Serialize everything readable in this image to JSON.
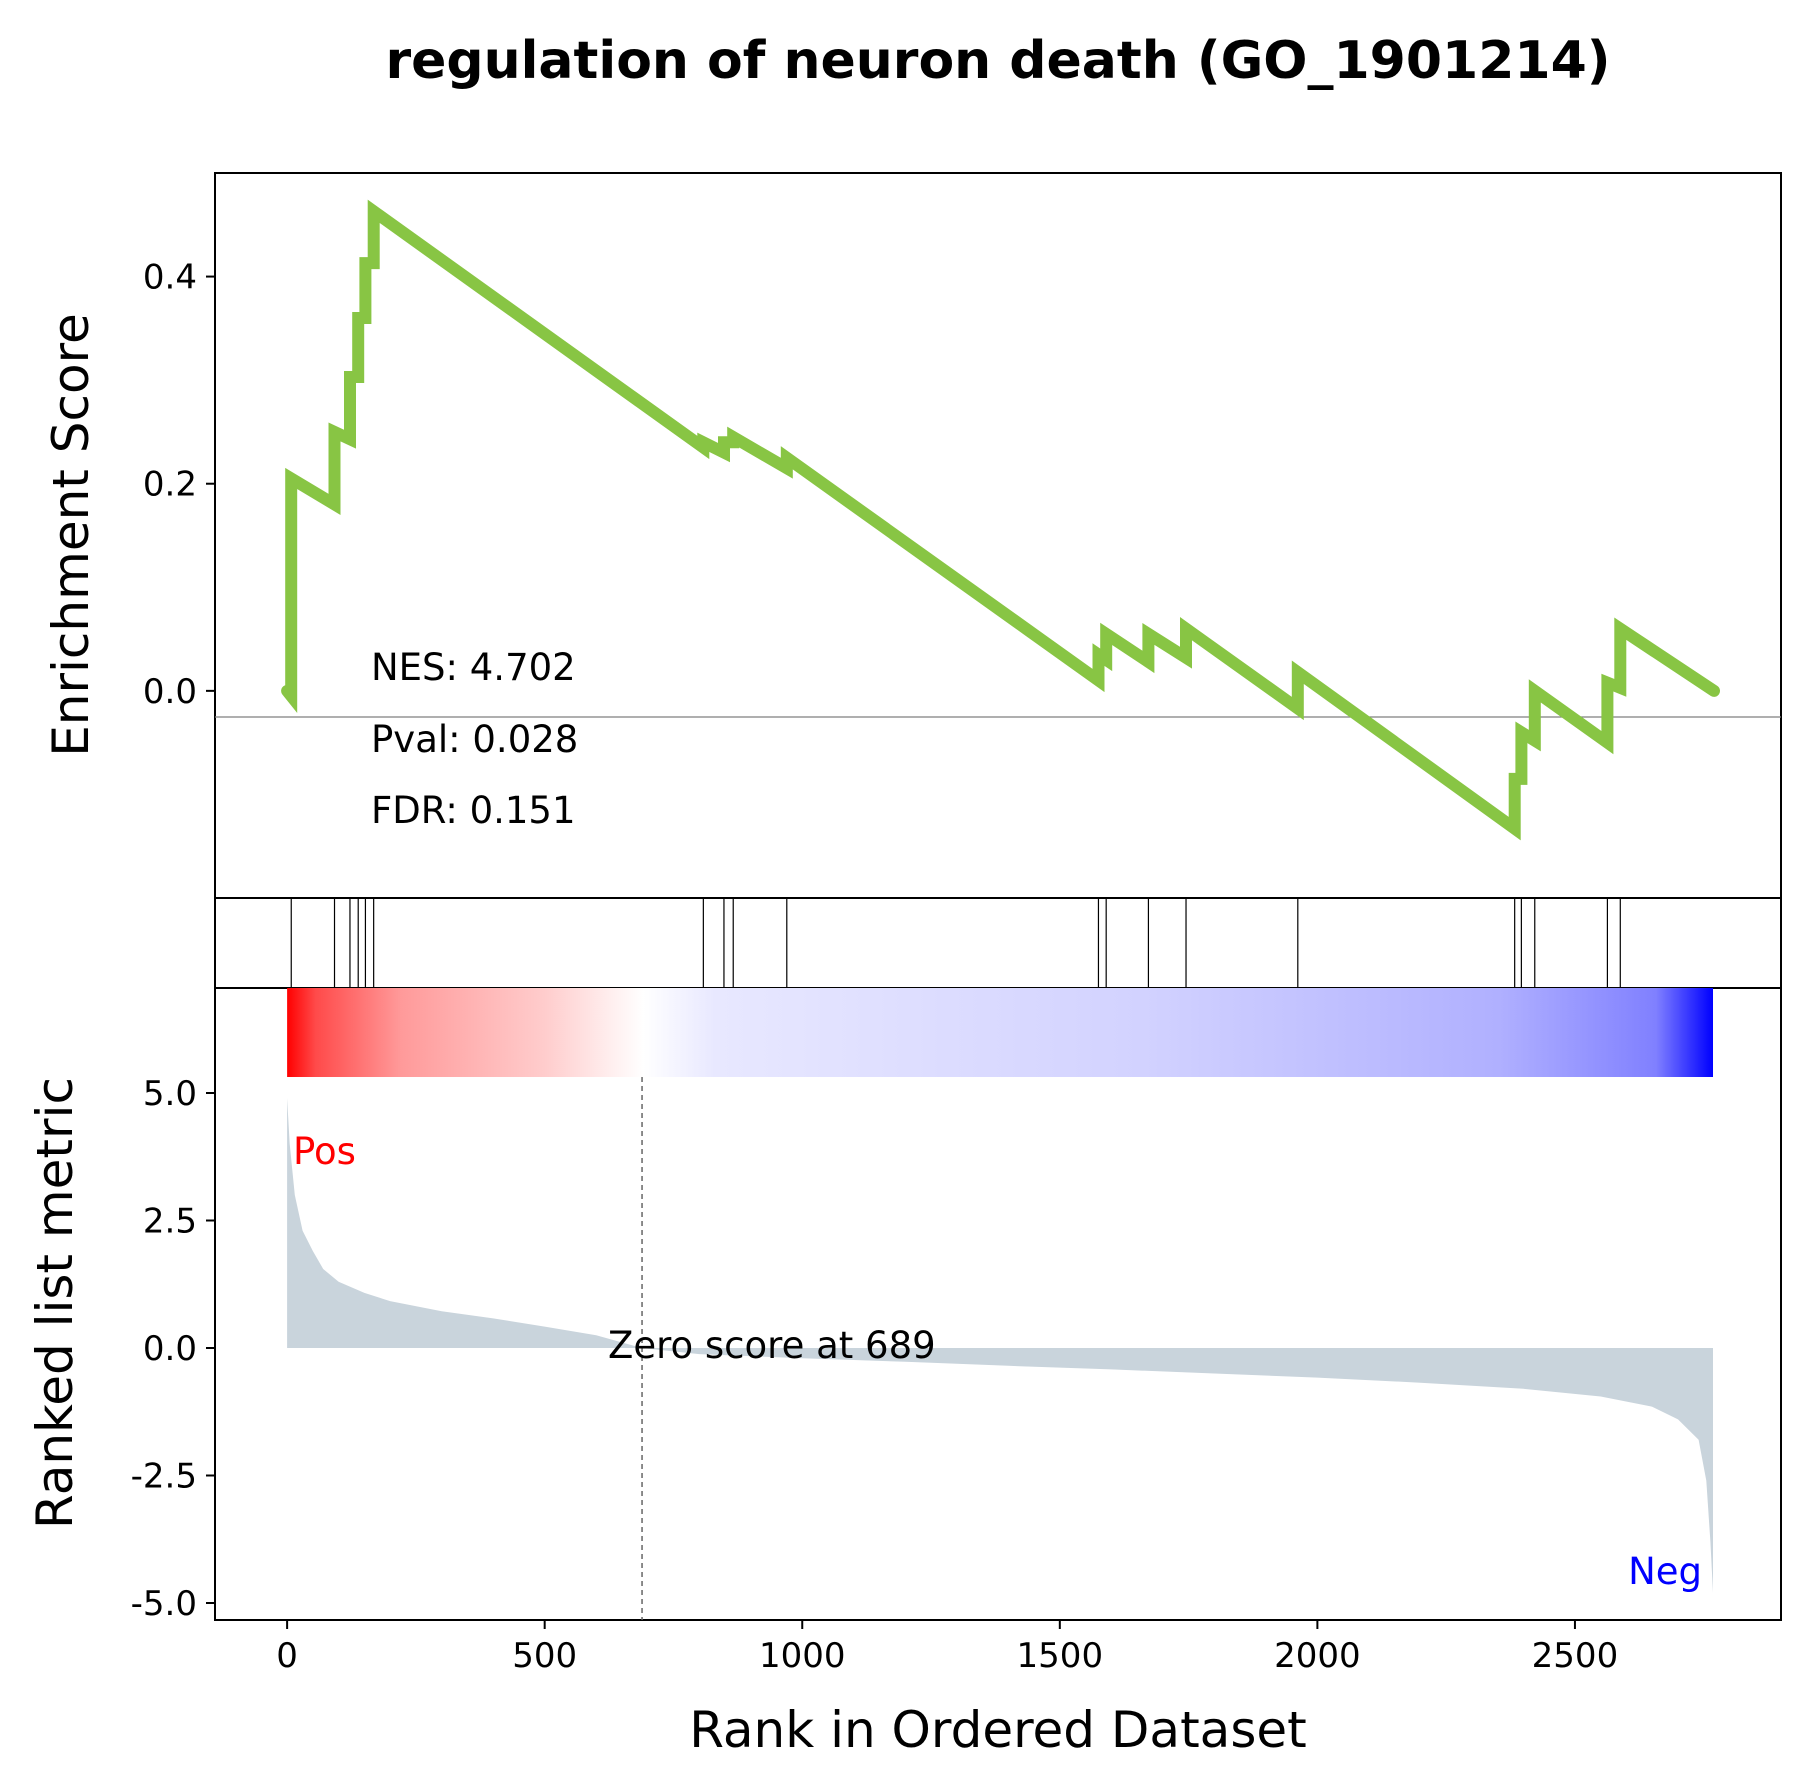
{
  "chart_data": {
    "type": "line",
    "title": "regulation of neuron death (GO_1901214)",
    "xlabel": "Rank in Ordered Dataset",
    "ylabel_top": "Enrichment Score",
    "ylabel_bottom": "Ranked list metric",
    "xlim": [
      -140,
      2900
    ],
    "x_ticks": [
      "0",
      "500",
      "1000",
      "1500",
      "2000",
      "2500"
    ],
    "es_ylim": [
      -0.2,
      0.5
    ],
    "es_ticks": [
      "0.0",
      "0.2",
      "0.4"
    ],
    "metric_ylim": [
      -5.0,
      5.0
    ],
    "metric_ticks": [
      "5.0",
      "2.5",
      "0.0",
      "-2.5",
      "-5.0"
    ],
    "stats": {
      "nes": "NES: 4.702",
      "pval": "Pval: 0.028",
      "fdr": "FDR: 0.151"
    },
    "zero_score_label": "Zero score at 689",
    "zero_rank": 689,
    "pos_label": "Pos",
    "neg_label": "Neg",
    "colors": {
      "es_line": "#88c544",
      "metric_fill": "#c9d4dc",
      "pos": "#ff0000",
      "neg": "#0000ff"
    },
    "hit_ranks": [
      8,
      92,
      122,
      138,
      152,
      168,
      808,
      848,
      866,
      970,
      1575,
      1590,
      1672,
      1745,
      1962,
      2383,
      2396,
      2422,
      2563,
      2588
    ],
    "es_series": [
      {
        "x": 0,
        "y": 0.0
      },
      {
        "x": 8,
        "y": -0.005
      },
      {
        "x": 8,
        "y": 0.205
      },
      {
        "x": 92,
        "y": 0.18
      },
      {
        "x": 92,
        "y": 0.25
      },
      {
        "x": 122,
        "y": 0.243
      },
      {
        "x": 122,
        "y": 0.303
      },
      {
        "x": 138,
        "y": 0.303
      },
      {
        "x": 138,
        "y": 0.36
      },
      {
        "x": 152,
        "y": 0.36
      },
      {
        "x": 152,
        "y": 0.413
      },
      {
        "x": 168,
        "y": 0.413
      },
      {
        "x": 168,
        "y": 0.463
      },
      {
        "x": 808,
        "y": 0.235
      },
      {
        "x": 808,
        "y": 0.24
      },
      {
        "x": 848,
        "y": 0.23
      },
      {
        "x": 848,
        "y": 0.24
      },
      {
        "x": 866,
        "y": 0.24
      },
      {
        "x": 866,
        "y": 0.245
      },
      {
        "x": 970,
        "y": 0.215
      },
      {
        "x": 970,
        "y": 0.225
      },
      {
        "x": 1575,
        "y": 0.01
      },
      {
        "x": 1575,
        "y": 0.035
      },
      {
        "x": 1590,
        "y": 0.03
      },
      {
        "x": 1590,
        "y": 0.055
      },
      {
        "x": 1672,
        "y": 0.028
      },
      {
        "x": 1672,
        "y": 0.055
      },
      {
        "x": 1745,
        "y": 0.032
      },
      {
        "x": 1745,
        "y": 0.06
      },
      {
        "x": 1962,
        "y": -0.017
      },
      {
        "x": 1962,
        "y": 0.018
      },
      {
        "x": 2383,
        "y": -0.133
      },
      {
        "x": 2383,
        "y": -0.085
      },
      {
        "x": 2396,
        "y": -0.085
      },
      {
        "x": 2396,
        "y": -0.04
      },
      {
        "x": 2422,
        "y": -0.048
      },
      {
        "x": 2422,
        "y": 0.0
      },
      {
        "x": 2563,
        "y": -0.05
      },
      {
        "x": 2563,
        "y": 0.008
      },
      {
        "x": 2588,
        "y": 0.003
      },
      {
        "x": 2588,
        "y": 0.06
      },
      {
        "x": 2770,
        "y": 0.0
      }
    ],
    "metric_series": [
      {
        "x": 0,
        "y": 4.9
      },
      {
        "x": 5,
        "y": 4.0
      },
      {
        "x": 15,
        "y": 3.0
      },
      {
        "x": 30,
        "y": 2.3
      },
      {
        "x": 50,
        "y": 1.9
      },
      {
        "x": 70,
        "y": 1.55
      },
      {
        "x": 100,
        "y": 1.3
      },
      {
        "x": 150,
        "y": 1.08
      },
      {
        "x": 200,
        "y": 0.92
      },
      {
        "x": 300,
        "y": 0.72
      },
      {
        "x": 400,
        "y": 0.58
      },
      {
        "x": 500,
        "y": 0.42
      },
      {
        "x": 600,
        "y": 0.25
      },
      {
        "x": 689,
        "y": 0.0
      },
      {
        "x": 800,
        "y": -0.12
      },
      {
        "x": 1000,
        "y": -0.2
      },
      {
        "x": 1200,
        "y": -0.27
      },
      {
        "x": 1400,
        "y": -0.35
      },
      {
        "x": 1600,
        "y": -0.42
      },
      {
        "x": 1800,
        "y": -0.5
      },
      {
        "x": 2000,
        "y": -0.58
      },
      {
        "x": 2200,
        "y": -0.68
      },
      {
        "x": 2400,
        "y": -0.8
      },
      {
        "x": 2550,
        "y": -0.95
      },
      {
        "x": 2650,
        "y": -1.15
      },
      {
        "x": 2700,
        "y": -1.4
      },
      {
        "x": 2740,
        "y": -1.8
      },
      {
        "x": 2755,
        "y": -2.6
      },
      {
        "x": 2763,
        "y": -3.8
      },
      {
        "x": 2768,
        "y": -4.8
      }
    ]
  }
}
